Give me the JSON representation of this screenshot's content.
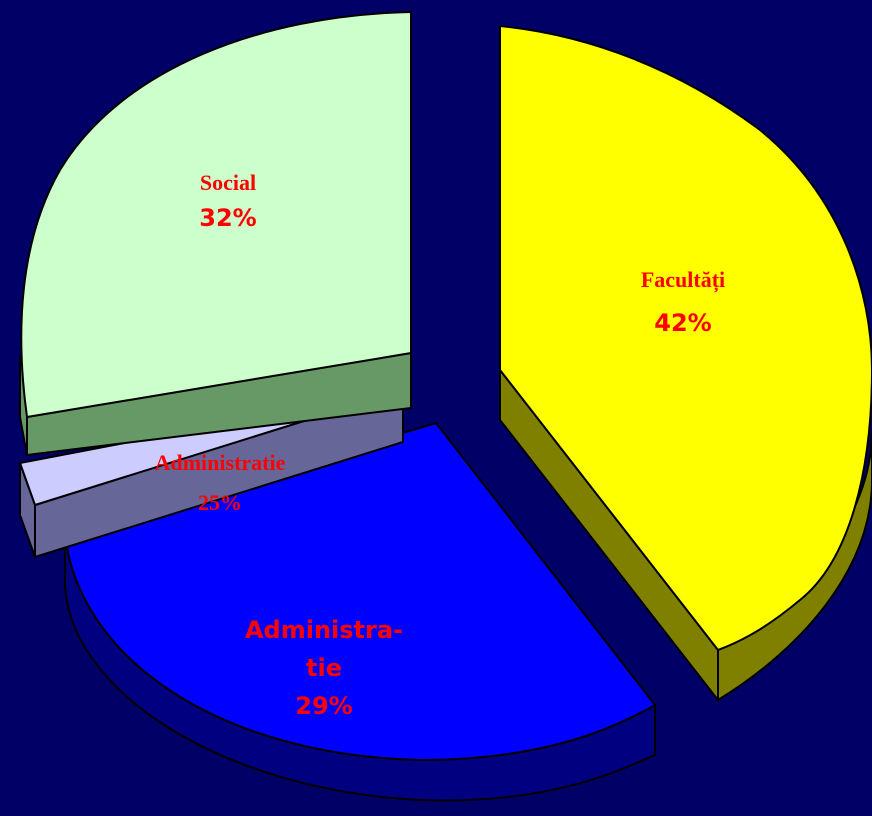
{
  "background": "#000066",
  "chart_data": {
    "type": "pie",
    "three_d": true,
    "exploded": true,
    "slices": [
      {
        "label": "Facultăți",
        "value_label": "42%",
        "color": "#ffff00",
        "side_color": "#808000"
      },
      {
        "label_lines": [
          "Administra-",
          "tie"
        ],
        "value_label": "29%",
        "color": "#0000ff",
        "side_color": "#000080"
      },
      {
        "label": "Administratie",
        "value_label": "25%",
        "color": "#ccccff",
        "side_color": "#666699"
      },
      {
        "label": "Social",
        "value_label": "32%",
        "color": "#ccffcc",
        "side_color": "#669966"
      }
    ]
  }
}
